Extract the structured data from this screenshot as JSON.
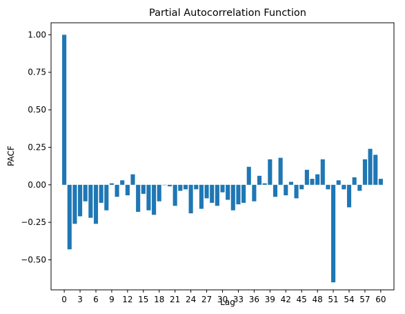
{
  "chart_data": {
    "type": "bar",
    "title": "Partial Autocorrelation Function",
    "xlabel": "Lag",
    "ylabel": "PACF",
    "x": [
      0,
      1,
      2,
      3,
      4,
      5,
      6,
      7,
      8,
      9,
      10,
      11,
      12,
      13,
      14,
      15,
      16,
      17,
      18,
      19,
      20,
      21,
      22,
      23,
      24,
      25,
      26,
      27,
      28,
      29,
      30,
      31,
      32,
      33,
      34,
      35,
      36,
      37,
      38,
      39,
      40,
      41,
      42,
      43,
      44,
      45,
      46,
      47,
      48,
      49,
      50,
      51,
      52,
      53,
      54,
      55,
      56,
      57,
      58,
      59,
      60
    ],
    "values": [
      1.0,
      -0.43,
      -0.26,
      -0.21,
      -0.11,
      -0.22,
      -0.26,
      -0.12,
      -0.17,
      0.01,
      -0.08,
      0.03,
      -0.07,
      0.07,
      -0.18,
      -0.06,
      -0.17,
      -0.2,
      -0.11,
      0.0,
      -0.01,
      -0.14,
      -0.04,
      -0.03,
      -0.19,
      -0.03,
      -0.16,
      -0.09,
      -0.12,
      -0.14,
      -0.05,
      -0.1,
      -0.17,
      -0.13,
      -0.12,
      0.12,
      -0.11,
      0.06,
      0.01,
      0.17,
      -0.08,
      0.18,
      -0.07,
      0.02,
      -0.09,
      -0.03,
      0.1,
      0.04,
      0.07,
      0.17,
      -0.03,
      -0.65,
      0.03,
      -0.03,
      -0.15,
      0.05,
      -0.04,
      0.17,
      0.24,
      0.2,
      0.04
    ],
    "xticks": [
      "0",
      "3",
      "6",
      "9",
      "12",
      "15",
      "18",
      "21",
      "24",
      "27",
      "30",
      "33",
      "36",
      "39",
      "42",
      "45",
      "48",
      "51",
      "54",
      "57",
      "60"
    ],
    "yticks": [
      "−0.50",
      "−0.25",
      "0.00",
      "0.25",
      "0.50",
      "0.75",
      "1.00"
    ],
    "ylim": [
      -0.7,
      1.08
    ],
    "xlim": [
      -2.5,
      62.5
    ],
    "bar_color": "#1f77b4"
  }
}
